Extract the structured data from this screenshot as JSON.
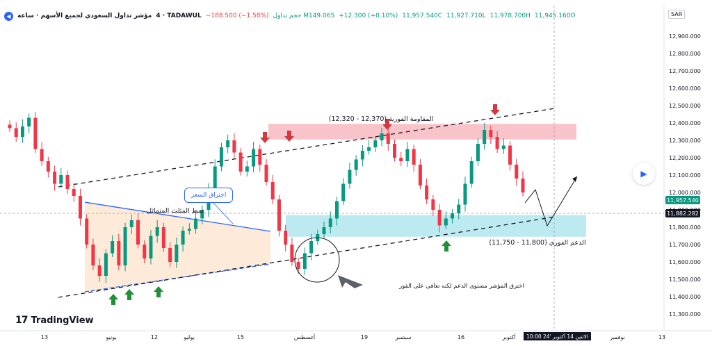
{
  "header": {
    "symbol": "4 · TADAWUL",
    "name": "مؤشر تداول السعودي لجميع الأسهم · ساعة",
    "change": "−188.500 (−1.58%)",
    "volume": "حجم تداول M149.065",
    "change2": "+12.300 (+0.10%)",
    "c": "11,957.540C",
    "l": "11,927.710L",
    "h": "11,978.700H",
    "o": "11,945.160O"
  },
  "currency": "SAR",
  "brand": "TradingView",
  "colors": {
    "up": "#089981",
    "down": "#f23645",
    "blue": "#2962ff"
  },
  "chart_data": {
    "type": "candlestick",
    "y_axis_range": [
      11300,
      12980
    ],
    "y_ticks": [
      11300,
      11400,
      11500,
      11600,
      11700,
      11800,
      11900,
      12000,
      12100,
      12200,
      12300,
      12400,
      12500,
      12600,
      12700,
      12800,
      12900
    ],
    "y_tick_labels": [
      "11,300.000",
      "11,400.000",
      "11,500.000",
      "11,600.000",
      "11,700.000",
      "11,800.000",
      "11,900.000",
      "12,000.000",
      "12,100.000",
      "12,200.000",
      "12,300.000",
      "12,400.000",
      "12,500.000",
      "12,600.000",
      "12,700.000",
      "12,800.000",
      "12,900.000"
    ],
    "x_tick_labels": [
      "13",
      "يونيو",
      "12",
      "يوليو",
      "15",
      "أغسطس",
      "19",
      "سبتمبر",
      "16",
      "أكتوبر",
      "نوفمبر",
      "13"
    ],
    "last_price_label": "11,957.540",
    "crosshair_price_label": "11,882.282",
    "crosshair_time_label": "الاثنين 14 أكتوبر '24   10:00",
    "zones": [
      {
        "label": "المقاومة الفورية (12,370 - 12,320)",
        "from": 12320,
        "to": 12370,
        "color": "#f7b9bf"
      },
      {
        "label": "الدعم الفوري (11,800 - 11,750)",
        "from": 11750,
        "to": 11800,
        "color": "#b2e6ef"
      }
    ],
    "annotations": {
      "pattern": "نمط المثلث المتماثل",
      "breakout": "اختراق السعر",
      "note": "اخترق المؤشر مستوى الدعم لكنه تعافى على الفور"
    },
    "series_close_path": [
      12370,
      12320,
      12380,
      12430,
      12250,
      12180,
      12120,
      12050,
      12100,
      12020,
      11980,
      11850,
      11700,
      11580,
      11520,
      11650,
      11720,
      11580,
      11800,
      11840,
      11700,
      11620,
      11750,
      11800,
      11680,
      11600,
      11700,
      11780,
      11790,
      11850,
      11900,
      12020,
      12150,
      12260,
      12300,
      12230,
      12120,
      12150,
      12250,
      12160,
      12060,
      11960,
      11780,
      11700,
      11600,
      11560,
      11650,
      11720,
      11760,
      11800,
      11850,
      11950,
      12050,
      12130,
      12190,
      12240,
      12260,
      12300,
      12340,
      12280,
      12200,
      12180,
      12250,
      12160,
      12040,
      11960,
      11900,
      11810,
      11850,
      11880,
      11930,
      12050,
      12180,
      12280,
      12360,
      12320,
      12250,
      12270,
      12160,
      12080,
      12000
    ]
  }
}
